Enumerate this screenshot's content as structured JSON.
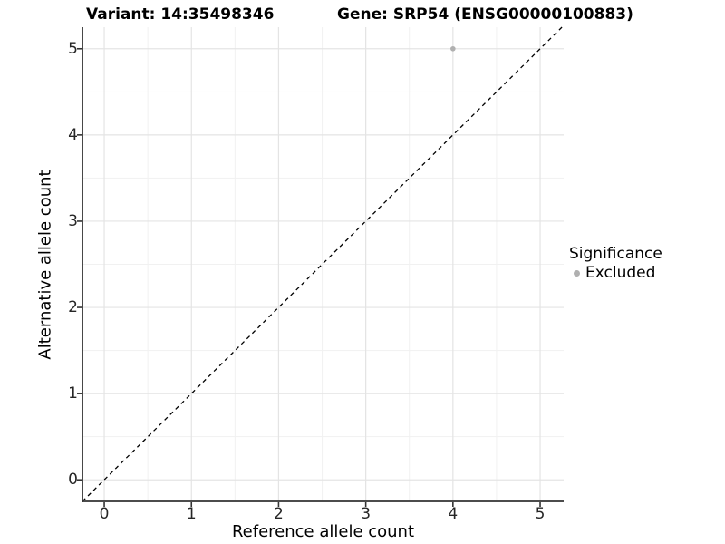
{
  "titles": {
    "variant": "Variant: 14:35498346",
    "gene": "Gene: SRP54 (ENSG00000100883)"
  },
  "axes": {
    "x": {
      "label": "Reference allele count",
      "ticks": [
        "0",
        "1",
        "2",
        "3",
        "4",
        "5"
      ]
    },
    "y": {
      "label": "Alternative allele count",
      "ticks": [
        "0",
        "1",
        "2",
        "3",
        "4",
        "5"
      ]
    }
  },
  "legend": {
    "title": "Significance",
    "items": [
      {
        "label": "Excluded",
        "color": "#b0b0b0"
      }
    ]
  },
  "colors": {
    "background": "#ffffff",
    "grid_major": "#e4e4e4",
    "grid_minor": "#f1f1f1",
    "axis_line": "#333333",
    "tick_mark": "#333333",
    "identity_line": "#000000",
    "point": "#b0b0b0",
    "text": "#000000"
  },
  "chart_data": {
    "type": "scatter",
    "title": "Variant: 14:35498346   Gene: SRP54 (ENSG00000100883)",
    "xlabel": "Reference allele count",
    "ylabel": "Alternative allele count",
    "xlim": [
      -0.25,
      5.27
    ],
    "ylim": [
      -0.25,
      5.25
    ],
    "x_ticks": [
      0,
      1,
      2,
      3,
      4,
      5
    ],
    "x_minor_ticks": [
      0.5,
      1.5,
      2.5,
      3.5,
      4.5
    ],
    "y_ticks": [
      0,
      1,
      2,
      3,
      4,
      5
    ],
    "y_minor_ticks": [
      0.5,
      1.5,
      2.5,
      3.5,
      4.5
    ],
    "grid": "major+minor",
    "legend_position": "right",
    "series": [
      {
        "name": "Excluded",
        "color": "#b0b0b0",
        "marker": "circle",
        "marker_radius": 2.8,
        "points": [
          {
            "x": 4,
            "y": 5
          }
        ]
      }
    ],
    "reference_line": {
      "kind": "identity",
      "slope": 1,
      "intercept": 0,
      "style": "dashed",
      "color": "#000000"
    }
  }
}
